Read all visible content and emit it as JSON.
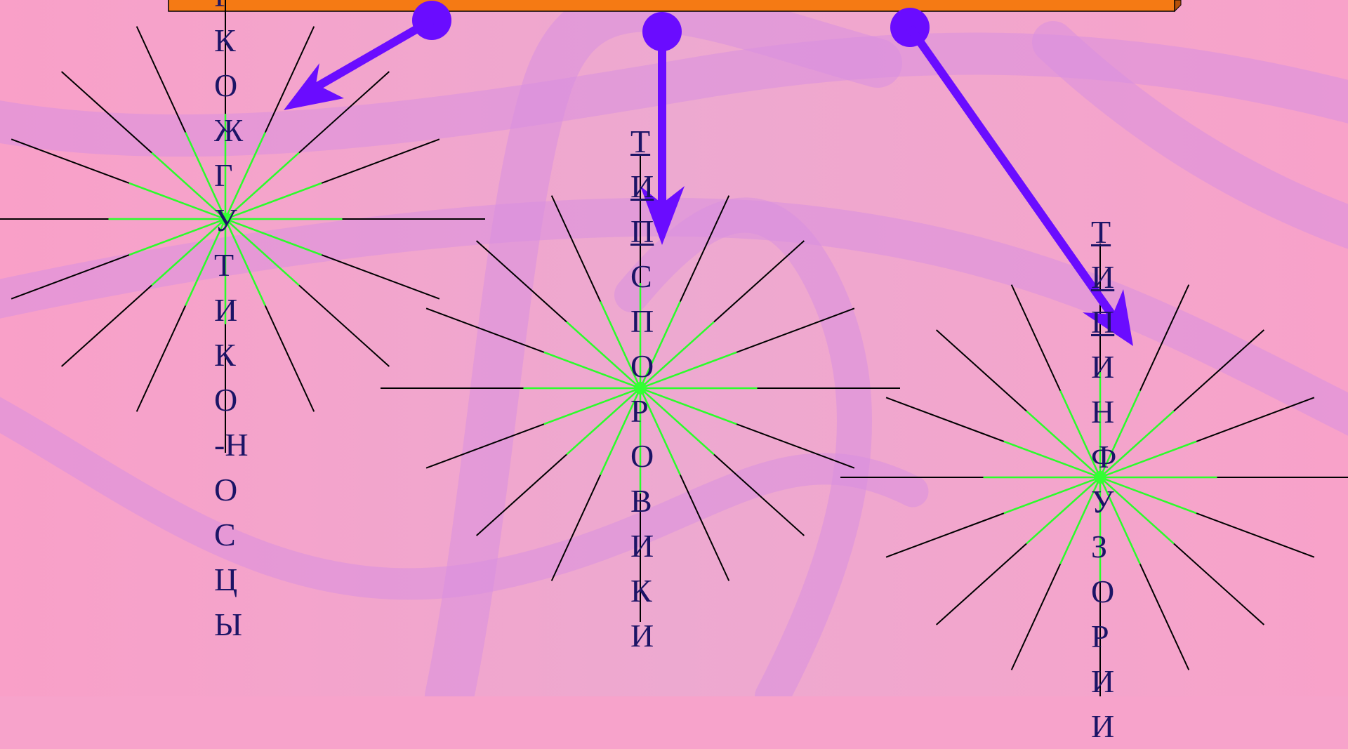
{
  "columns": [
    {
      "text": "РКОЖГУТИКО-НОСЦЫ"
    },
    {
      "prefix": "ТИП",
      "text": "СПОРОВИКИ"
    },
    {
      "prefix": "ТИП",
      "text": "ИНФУЗОРИИ"
    }
  ]
}
